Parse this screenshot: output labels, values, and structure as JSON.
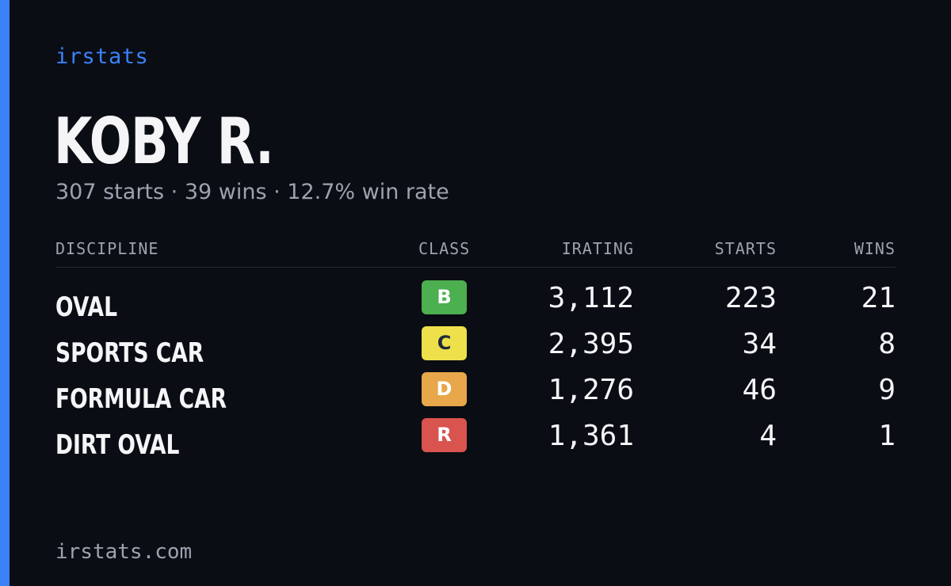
{
  "brand": "irstats",
  "driver": {
    "name": "KOBY R.",
    "summary": "307 starts · 39 wins · 12.7% win rate"
  },
  "table": {
    "headers": {
      "discipline": "DISCIPLINE",
      "class": "CLASS",
      "irating": "IRATING",
      "starts": "STARTS",
      "wins": "WINS"
    },
    "rows": [
      {
        "discipline": "OVAL",
        "class": "B",
        "class_color": "#4caf50",
        "class_text_color": "#ffffff",
        "irating": "3,112",
        "starts": "223",
        "wins": "21"
      },
      {
        "discipline": "SPORTS CAR",
        "class": "C",
        "class_color": "#ede04a",
        "class_text_color": "#1f2937",
        "irating": "2,395",
        "starts": "34",
        "wins": "8"
      },
      {
        "discipline": "FORMULA CAR",
        "class": "D",
        "class_color": "#e8a74a",
        "class_text_color": "#ffffff",
        "irating": "1,276",
        "starts": "46",
        "wins": "9"
      },
      {
        "discipline": "DIRT OVAL",
        "class": "R",
        "class_color": "#d9534f",
        "class_text_color": "#ffffff",
        "irating": "1,361",
        "starts": "4",
        "wins": "1"
      }
    ]
  },
  "footer": {
    "url": "irstats.com"
  },
  "colors": {
    "accent": "#3b82f6",
    "background": "#0a0d14"
  }
}
